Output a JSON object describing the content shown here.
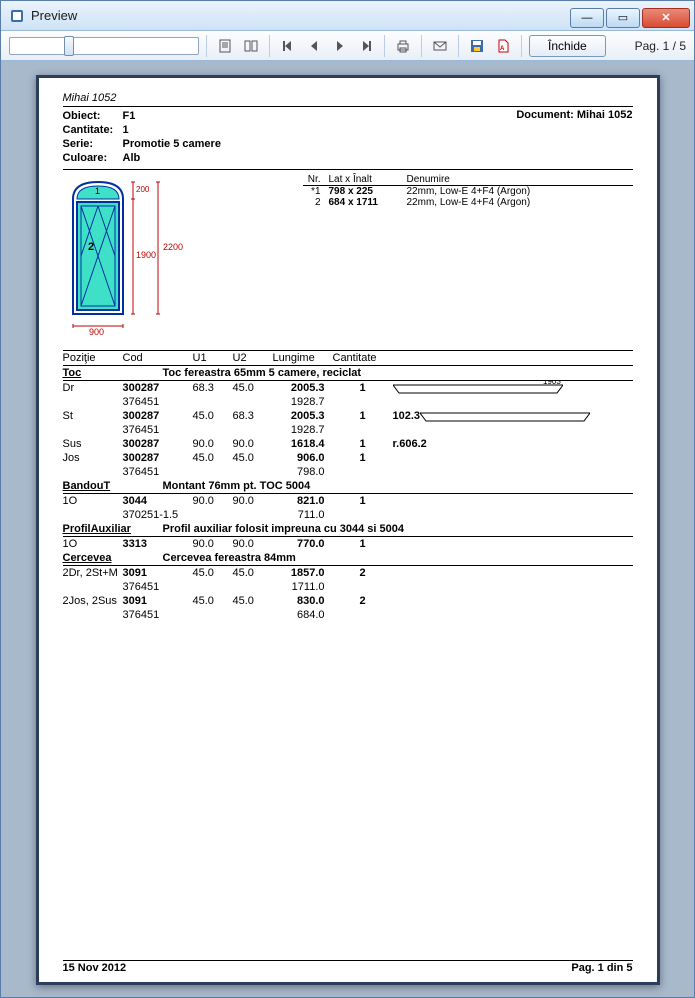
{
  "window": {
    "title": "Preview"
  },
  "toolbar": {
    "close_label": "Închide",
    "page_info": "Pag. 1 / 5"
  },
  "report": {
    "title_line": "Mihai 1052",
    "header": {
      "obiect_lbl": "Obiect:",
      "obiect": "F1",
      "cantitate_lbl": "Cantitate:",
      "cantitate": "1",
      "serie_lbl": "Serie:",
      "serie": "Promotie 5 camere",
      "culoare_lbl": "Culoare:",
      "culoare": "Alb",
      "document_lbl": "Document:",
      "document": "Mihai 1052"
    },
    "drawing": {
      "dim_outer_h": "2200",
      "dim_inner_h": "1900",
      "dim_top": "200",
      "dim_w": "900",
      "panel_label_1": "1",
      "panel_label_2": "2",
      "glass_color": "#3fe0c8",
      "frame_color": "#0030a0",
      "dim_color": "#c00000"
    },
    "glass_header": {
      "nr": "Nr.",
      "dim": "Lat x Înalt",
      "den": "Denumire"
    },
    "glass": [
      {
        "nr": "*1",
        "dim": "798 x  225",
        "den": "22mm, Low-E 4+F4 (Argon)"
      },
      {
        "nr": "2",
        "dim": "684 x 1711",
        "den": "22mm, Low-E 4+F4 (Argon)"
      }
    ],
    "columns": {
      "c1": "Poziţie",
      "c2": "Cod",
      "c3": "U1",
      "c4": "U2",
      "c5": "Lungime",
      "c6": "Cantitate"
    },
    "sections": [
      {
        "name": "Toc",
        "desc": "Toc fereastra 65mm 5 camere, reciclat",
        "rows": [
          {
            "c1": "Dr",
            "c2": "300287",
            "c3": "68.3",
            "c4": "45.0",
            "c5": "2005.3",
            "c6": "1",
            "extra": "",
            "shape": "1903"
          },
          {
            "c1": "",
            "c2": "376451",
            "c3": "",
            "c4": "",
            "c5": "1928.7",
            "c6": "",
            "sub": true
          },
          {
            "c1": "St",
            "c2": "300287",
            "c3": "45.0",
            "c4": "68.3",
            "c5": "2005.3",
            "c6": "1",
            "extra": "102.3",
            "shape": "long"
          },
          {
            "c1": "",
            "c2": "376451",
            "c3": "",
            "c4": "",
            "c5": "1928.7",
            "c6": "",
            "sub": true
          },
          {
            "c1": "Sus",
            "c2": "300287",
            "c3": "90.0",
            "c4": "90.0",
            "c5": "1618.4",
            "c6": "1",
            "extra": "r.606.2"
          },
          {
            "c1": "Jos",
            "c2": "300287",
            "c3": "45.0",
            "c4": "45.0",
            "c5": "906.0",
            "c6": "1"
          },
          {
            "c1": "",
            "c2": "376451",
            "c3": "",
            "c4": "",
            "c5": "798.0",
            "c6": "",
            "sub": true
          }
        ]
      },
      {
        "name": "BandouT",
        "desc": "Montant 76mm pt. TOC 5004",
        "rows": [
          {
            "c1": "1O",
            "c2": "3044",
            "c3": "90.0",
            "c4": "90.0",
            "c5": "821.0",
            "c6": "1"
          },
          {
            "c1": "",
            "c2": "370251-1.5",
            "c3": "",
            "c4": "",
            "c5": "711.0",
            "c6": "",
            "sub": true
          }
        ]
      },
      {
        "name": "ProfilAuxiliar",
        "desc": "Profil auxiliar folosit impreuna cu 3044 si 5004",
        "rows": [
          {
            "c1": "1O",
            "c2": "3313",
            "c3": "90.0",
            "c4": "90.0",
            "c5": "770.0",
            "c6": "1"
          }
        ]
      },
      {
        "name": "Cercevea",
        "desc": "Cercevea fereastra 84mm",
        "rows": [
          {
            "c1": "2Dr, 2St+M",
            "c2": "3091",
            "c3": "45.0",
            "c4": "45.0",
            "c5": "1857.0",
            "c6": "2"
          },
          {
            "c1": "",
            "c2": "376451",
            "c3": "",
            "c4": "",
            "c5": "1711.0",
            "c6": "",
            "sub": true
          },
          {
            "c1": "2Jos, 2Sus",
            "c2": "3091",
            "c3": "45.0",
            "c4": "45.0",
            "c5": "830.0",
            "c6": "2"
          },
          {
            "c1": "",
            "c2": "376451",
            "c3": "",
            "c4": "",
            "c5": "684.0",
            "c6": "",
            "sub": true
          }
        ]
      }
    ],
    "footer": {
      "date": "15 Nov 2012",
      "page": "Pag. 1 din 5"
    }
  }
}
